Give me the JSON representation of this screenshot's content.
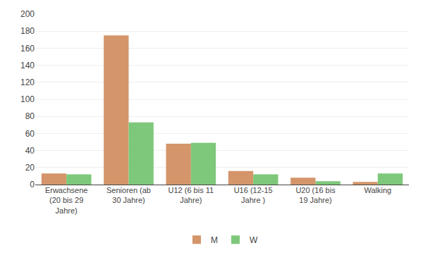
{
  "chart_data": {
    "type": "bar",
    "categories": [
      "Erwachsene\n(20 bis 29\nJahre)",
      "Senioren (ab\n30 Jahre)",
      "U12 (6 bis 11\nJahre)",
      "U16 (12-15\nJahre )",
      "U20 (16 bis\n19 Jahre)",
      "Walking"
    ],
    "series": [
      {
        "name": "M",
        "color": "#d4956a",
        "values": [
          13,
          175,
          48,
          16,
          8,
          3
        ]
      },
      {
        "name": "W",
        "color": "#7dc87a",
        "values": [
          12,
          73,
          49,
          12,
          4,
          13
        ]
      }
    ],
    "ylim": [
      0,
      200
    ],
    "yticks": [
      0,
      20,
      40,
      60,
      80,
      100,
      120,
      140,
      160,
      180,
      200
    ],
    "grid": true,
    "legend": "bottom"
  }
}
